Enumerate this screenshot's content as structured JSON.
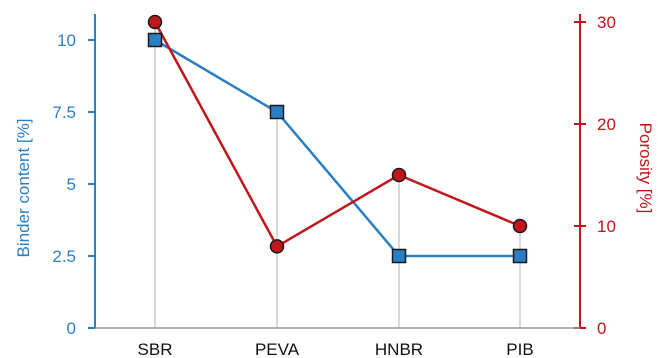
{
  "chart_data": {
    "type": "line",
    "title": "",
    "categories": [
      "SBR",
      "PEVA",
      "HNBR",
      "PIB"
    ],
    "left_axis": {
      "label": "Binder content [%]",
      "ylim": [
        0,
        11
      ],
      "ticks": [
        0,
        2.5,
        5,
        7.5,
        10
      ],
      "tick_labels": [
        "0",
        "2.5",
        "5",
        "7.5",
        "10"
      ],
      "color": "#2a7fc4"
    },
    "right_axis": {
      "label": "Porosity [%]",
      "ylim": [
        0,
        31
      ],
      "ticks": [
        0,
        10,
        20,
        30
      ],
      "tick_labels": [
        "0",
        "10",
        "20",
        "30"
      ],
      "color": "#c0161c"
    },
    "series": [
      {
        "axis": "left",
        "marker": "square",
        "color": "#2a7fc4",
        "values": [
          10,
          7.5,
          2.5,
          2.5
        ]
      },
      {
        "axis": "right",
        "marker": "circle",
        "color": "#c0161c",
        "values": [
          30,
          8,
          15,
          10
        ]
      }
    ],
    "grid": "vertical drop lines at categories"
  }
}
